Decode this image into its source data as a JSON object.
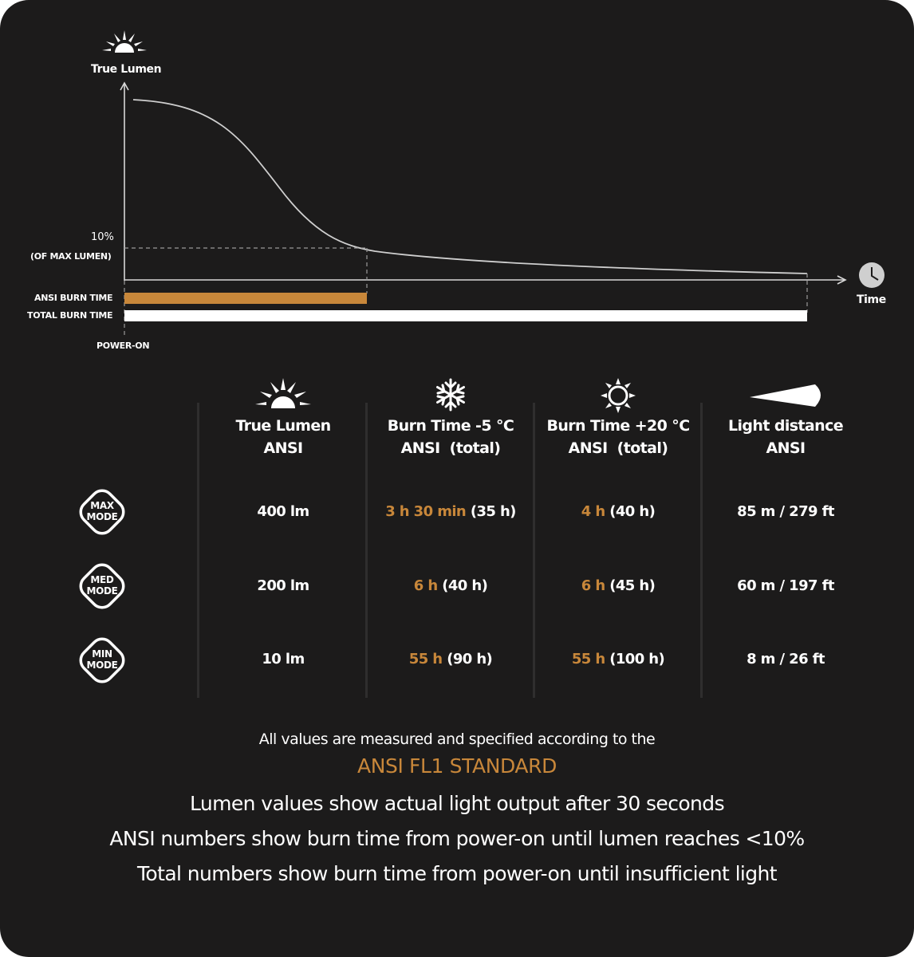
{
  "chart": {
    "y_axis_label": "True Lumen",
    "x_axis_label": "Time",
    "threshold_value": "10%",
    "threshold_note": "(OF MAX LUMEN)",
    "ansi_bar_label": "ANSI BURN TIME",
    "total_bar_label": "TOTAL BURN TIME",
    "origin_label": "POWER-ON",
    "accent_color": "#c8873a",
    "bar_ansi_color": "#c8873a",
    "bar_total_color": "#ffffff",
    "icons": {
      "y_axis": "sun-rise-icon",
      "x_axis": "clock-icon"
    }
  },
  "table": {
    "columns": [
      {
        "icon": "sun-rise-icon",
        "line1": "True Lumen",
        "line2": "ANSI"
      },
      {
        "icon": "snowflake-icon",
        "line1": "Burn Time -5 °C",
        "line2": "ANSI  (total)"
      },
      {
        "icon": "sun-icon",
        "line1": "Burn Time +20 °C",
        "line2": "ANSI  (total)"
      },
      {
        "icon": "light-beam-icon",
        "line1": "Light distance",
        "line2": "ANSI"
      }
    ],
    "rows": [
      {
        "mode_line1": "MAX",
        "mode_line2": "MODE",
        "lumen": "400 lm",
        "cold_ansi": "3 h 30 min",
        "cold_total": "(35 h)",
        "warm_ansi": "4 h",
        "warm_total": "(40 h)",
        "distance": "85 m / 279 ft"
      },
      {
        "mode_line1": "MED",
        "mode_line2": "MODE",
        "lumen": "200 lm",
        "cold_ansi": "6 h",
        "cold_total": "(40 h)",
        "warm_ansi": "6 h",
        "warm_total": "(45 h)",
        "distance": "60 m / 197 ft"
      },
      {
        "mode_line1": "MIN",
        "mode_line2": "MODE",
        "lumen": "10 lm",
        "cold_ansi": "55 h",
        "cold_total": "(90 h)",
        "warm_ansi": "55 h",
        "warm_total": "(100 h)",
        "distance": "8 m / 26 ft"
      }
    ]
  },
  "footer": {
    "line1": "All values are measured and specified according to the",
    "standard": "ANSI FL1 STANDARD",
    "note1": "Lumen values show actual light output after 30 seconds",
    "note2": "ANSI numbers show burn time from power-on until lumen reaches <10%",
    "note3": "Total numbers show burn time from power-on until insufficient light"
  }
}
